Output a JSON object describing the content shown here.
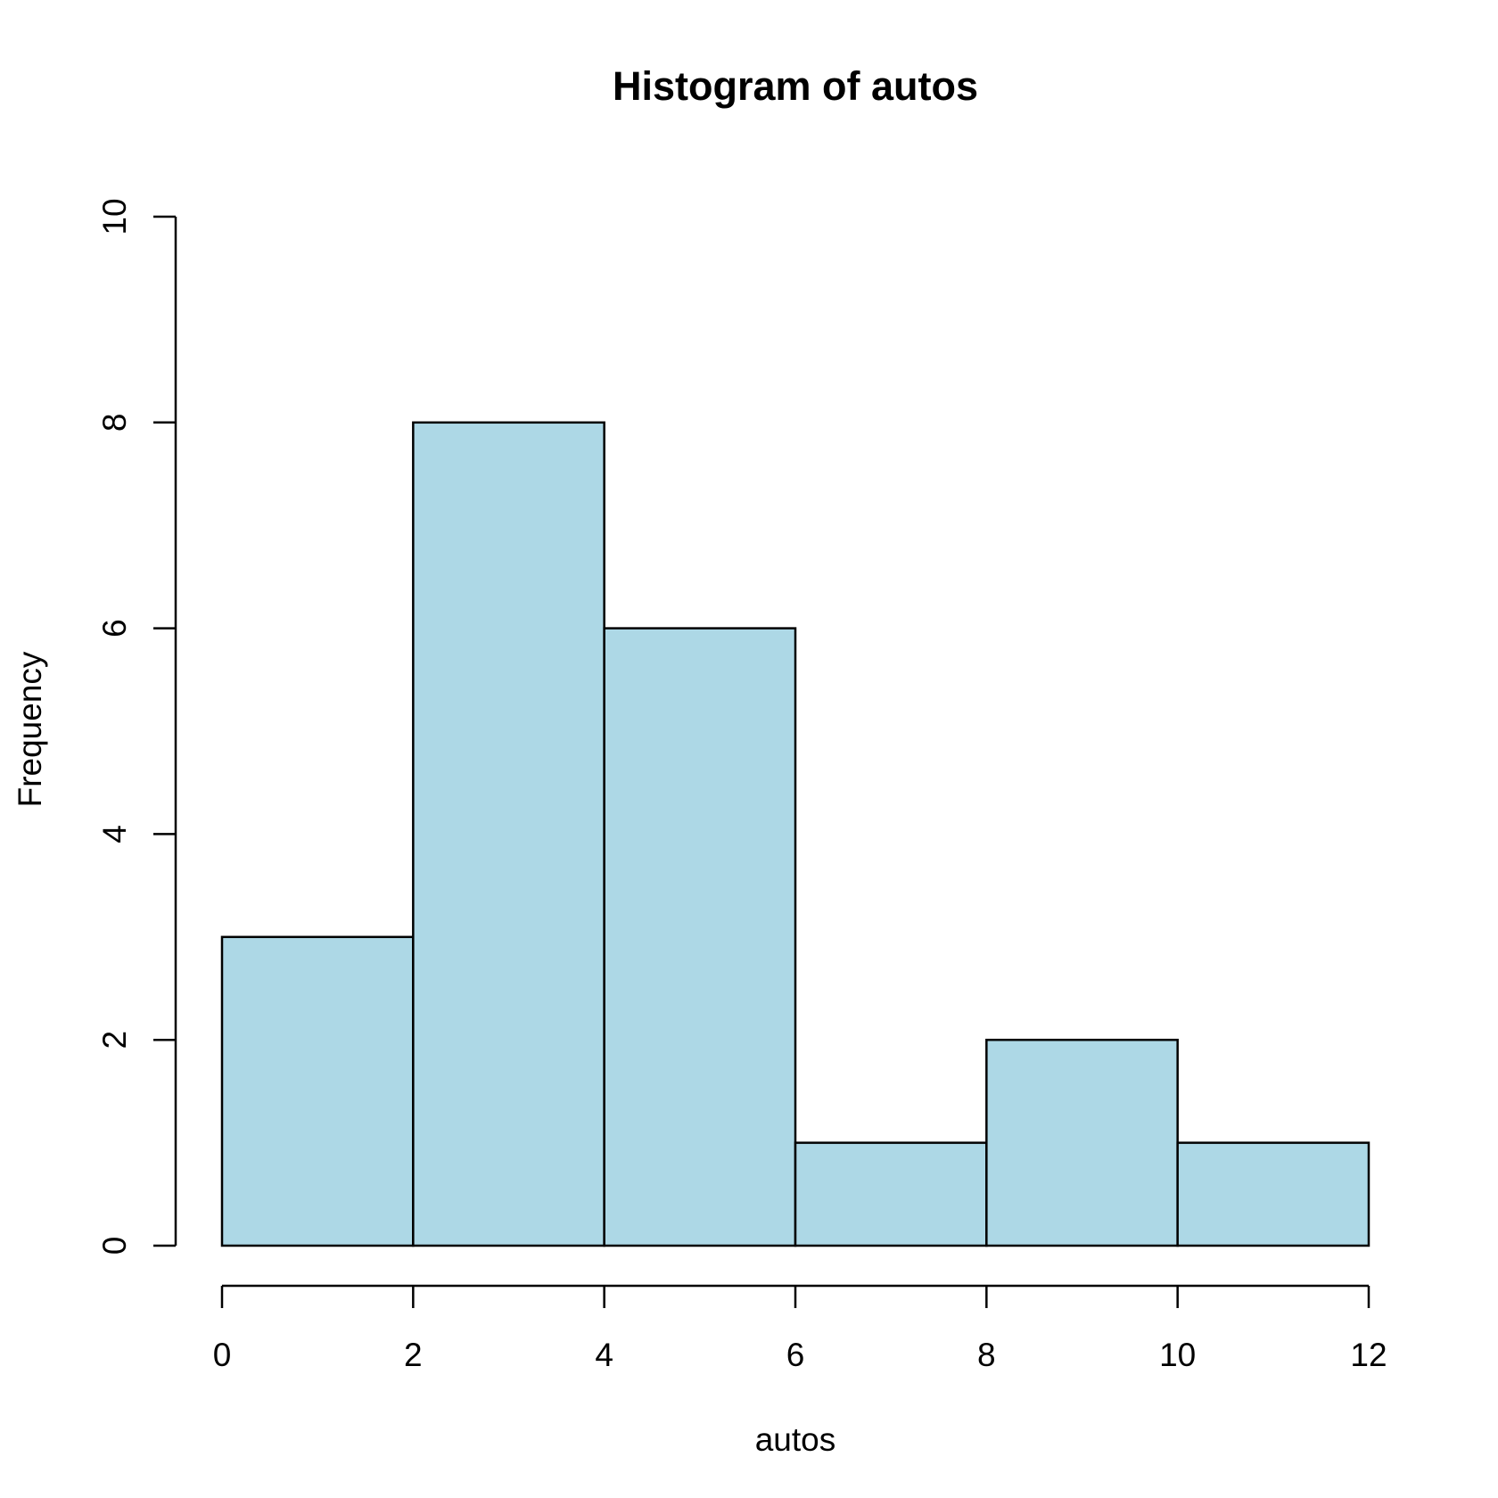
{
  "chart_data": {
    "type": "histogram",
    "title": "Histogram of autos",
    "x_label": "autos",
    "y_label": "Frequency",
    "bins": [
      0,
      2,
      4,
      6,
      8,
      10,
      12
    ],
    "values": [
      3,
      8,
      6,
      1,
      2,
      1
    ],
    "color": "#add8e6",
    "xlim": [
      0,
      12
    ],
    "xticks": [
      0,
      2,
      4,
      6,
      8,
      10,
      12
    ],
    "ylim": [
      0,
      10
    ],
    "yticks": [
      0,
      2,
      4,
      6,
      8,
      10
    ]
  }
}
